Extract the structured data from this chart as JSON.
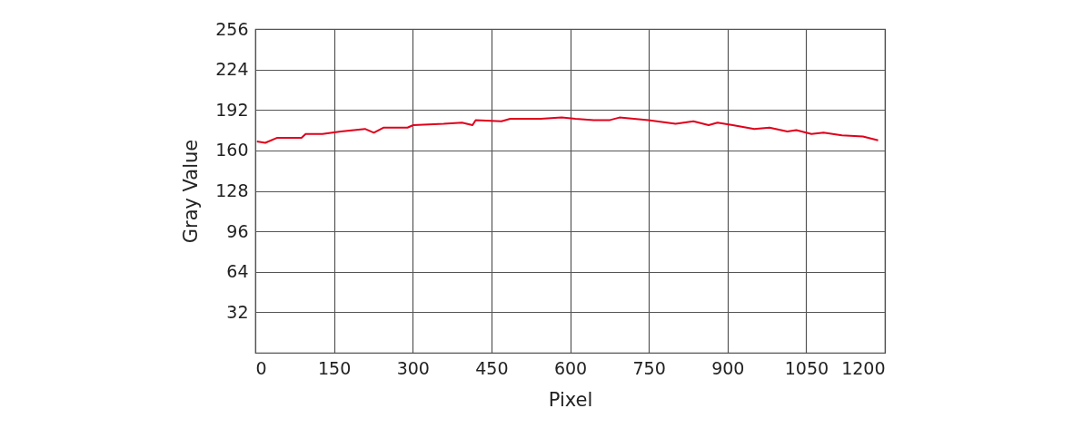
{
  "chart_data": {
    "type": "line",
    "xlabel": "Pixel",
    "ylabel": "Gray Value",
    "x": [
      3,
      19,
      42,
      70,
      88,
      96,
      128,
      163,
      209,
      226,
      244,
      290,
      301,
      359,
      394,
      414,
      420,
      469,
      486,
      544,
      584,
      610,
      645,
      676,
      694,
      749,
      801,
      835,
      864,
      881,
      910,
      951,
      980,
      1014,
      1031,
      1060,
      1083,
      1118,
      1158,
      1187
    ],
    "series": [
      {
        "color": "#e0001b",
        "values": [
          167,
          166,
          170,
          170,
          170,
          173,
          173,
          175,
          177,
          174,
          178,
          178,
          180,
          181,
          182,
          180,
          184,
          183,
          185,
          185,
          186,
          185,
          184,
          184,
          186,
          184,
          181,
          183,
          180,
          182,
          180,
          177,
          178,
          175,
          176,
          173,
          174,
          172,
          171,
          168
        ]
      }
    ],
    "xlim": [
      0,
      1200
    ],
    "xticks": [
      0,
      150,
      300,
      450,
      600,
      750,
      900,
      1050,
      1200
    ],
    "ylim": [
      0,
      256
    ],
    "yticks": [
      32,
      64,
      96,
      128,
      160,
      192,
      224,
      256
    ],
    "grid": true,
    "marker": "none",
    "line_style": "solid"
  }
}
